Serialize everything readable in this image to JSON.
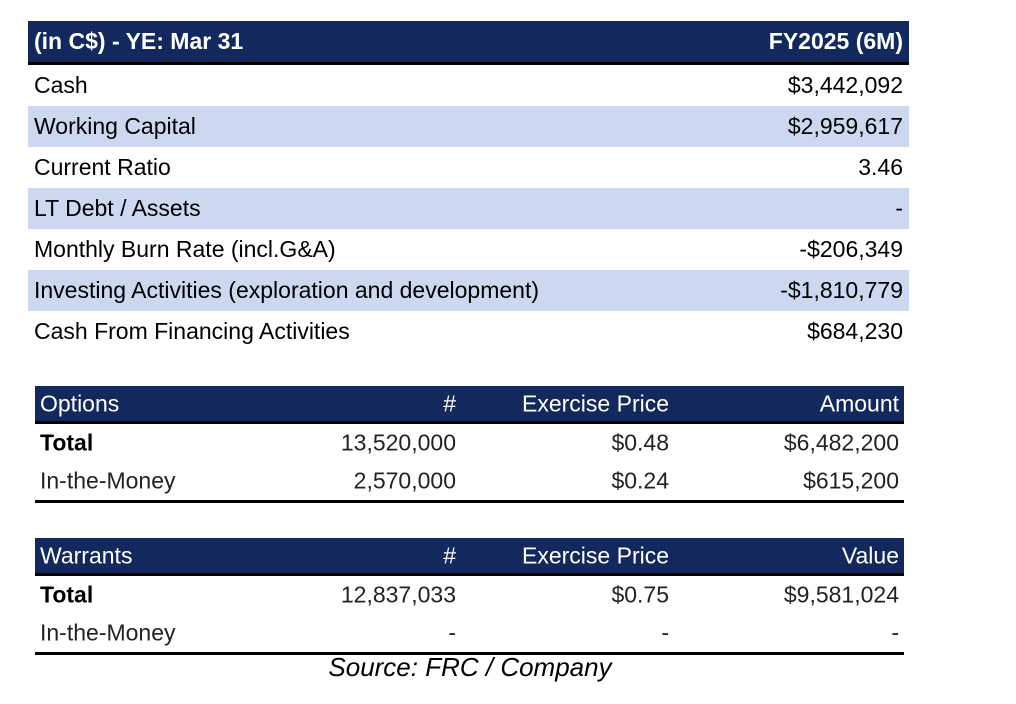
{
  "financials": {
    "header": {
      "label": "(in C$) - YE: Mar 31",
      "period": "FY2025 (6M)"
    },
    "rows": [
      {
        "label": "Cash",
        "value": "$3,442,092"
      },
      {
        "label": "Working Capital",
        "value": "$2,959,617"
      },
      {
        "label": "Current Ratio",
        "value": "3.46"
      },
      {
        "label": "LT Debt / Assets",
        "value": "-"
      },
      {
        "label": "Monthly Burn Rate (incl.G&A)",
        "value": "-$206,349"
      },
      {
        "label": "Investing Activities (exploration and development)",
        "value": "-$1,810,779"
      },
      {
        "label": "Cash From Financing Activities",
        "value": "$684,230"
      }
    ]
  },
  "options": {
    "headers": [
      "Options",
      "#",
      "Exercise Price",
      "Amount"
    ],
    "rows": [
      [
        "Total",
        "13,520,000",
        "$0.48",
        "$6,482,200"
      ],
      [
        "In-the-Money",
        "2,570,000",
        "$0.24",
        "$615,200"
      ]
    ]
  },
  "warrants": {
    "headers": [
      "Warrants",
      "#",
      "Exercise Price",
      "Value"
    ],
    "rows": [
      [
        "Total",
        "12,837,033",
        "$0.75",
        "$9,581,024"
      ],
      [
        "In-the-Money",
        "-",
        "-",
        "-"
      ]
    ]
  },
  "source": "Source: FRC / Company"
}
